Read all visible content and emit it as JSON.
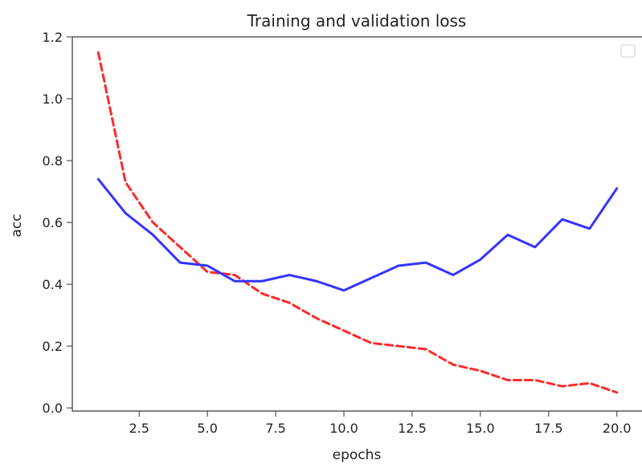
{
  "chart_data": {
    "type": "line",
    "title": "Training and validation loss",
    "xlabel": "epochs",
    "ylabel": "acc",
    "xlim": [
      0.05,
      20.95
    ],
    "ylim": [
      -0.01,
      1.2
    ],
    "xticks": [
      2.5,
      5.0,
      7.5,
      10.0,
      12.5,
      15.0,
      17.5,
      20.0
    ],
    "xtick_labels": [
      "2.5",
      "5.0",
      "7.5",
      "10.0",
      "12.5",
      "15.0",
      "17.5",
      "20.0"
    ],
    "yticks": [
      0.0,
      0.2,
      0.4,
      0.6,
      0.8,
      1.0,
      1.2
    ],
    "ytick_labels": [
      "0.0",
      "0.2",
      "0.4",
      "0.6",
      "0.8",
      "1.0",
      "1.2"
    ],
    "grid": false,
    "legend": {
      "placement": "top-right",
      "entries": []
    },
    "series": [
      {
        "color": "#ff2a2a",
        "line_style": "dashed",
        "x": [
          1,
          2,
          3,
          4,
          5,
          6,
          7,
          8,
          9,
          10,
          11,
          12,
          13,
          14,
          15,
          16,
          17,
          18,
          19,
          20
        ],
        "values": [
          1.15,
          0.73,
          0.6,
          0.52,
          0.44,
          0.43,
          0.37,
          0.34,
          0.29,
          0.25,
          0.21,
          0.2,
          0.19,
          0.14,
          0.12,
          0.09,
          0.09,
          0.07,
          0.08,
          0.05
        ]
      },
      {
        "color": "#3434ff",
        "line_style": "solid",
        "x": [
          1,
          2,
          3,
          4,
          5,
          6,
          7,
          8,
          9,
          10,
          11,
          12,
          13,
          14,
          15,
          16,
          17,
          18,
          19,
          20
        ],
        "values": [
          0.74,
          0.63,
          0.56,
          0.47,
          0.46,
          0.41,
          0.41,
          0.43,
          0.41,
          0.38,
          0.42,
          0.46,
          0.47,
          0.43,
          0.48,
          0.56,
          0.52,
          0.61,
          0.58,
          0.71
        ]
      }
    ]
  }
}
